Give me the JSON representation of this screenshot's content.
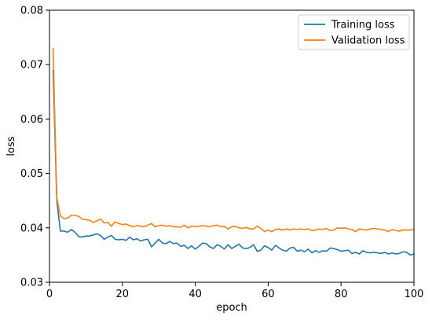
{
  "chart_data": {
    "type": "line",
    "title": "",
    "xlabel": "epoch",
    "ylabel": "loss",
    "xlim": [
      0,
      100
    ],
    "ylim": [
      0.03,
      0.08
    ],
    "xticks": [
      0,
      20,
      40,
      60,
      80,
      100
    ],
    "yticks": [
      0.03,
      0.04,
      0.05,
      0.06,
      0.07,
      0.08
    ],
    "xtick_labels": [
      "0",
      "20",
      "40",
      "60",
      "80",
      "100"
    ],
    "ytick_labels": [
      "0.03",
      "0.04",
      "0.05",
      "0.06",
      "0.07",
      "0.08"
    ],
    "grid": false,
    "legend": {
      "position": "top-right"
    },
    "x": [
      1,
      2,
      3,
      4,
      5,
      6,
      7,
      8,
      9,
      10,
      11,
      12,
      13,
      14,
      15,
      16,
      17,
      18,
      19,
      20,
      21,
      22,
      23,
      24,
      25,
      26,
      27,
      28,
      29,
      30,
      31,
      32,
      33,
      34,
      35,
      36,
      37,
      38,
      39,
      40,
      41,
      42,
      43,
      44,
      45,
      46,
      47,
      48,
      49,
      50,
      51,
      52,
      53,
      54,
      55,
      56,
      57,
      58,
      59,
      60,
      61,
      62,
      63,
      64,
      65,
      66,
      67,
      68,
      69,
      70,
      71,
      72,
      73,
      74,
      75,
      76,
      77,
      78,
      79,
      80,
      81,
      82,
      83,
      84,
      85,
      86,
      87,
      88,
      89,
      90,
      91,
      92,
      93,
      94,
      95,
      96,
      97,
      98,
      99,
      100
    ],
    "series": [
      {
        "name": "Training loss",
        "color": "#1f77b4",
        "values": [
          0.069,
          0.045,
          0.0394,
          0.0394,
          0.0392,
          0.0397,
          0.0392,
          0.0384,
          0.0383,
          0.0385,
          0.0385,
          0.0387,
          0.0389,
          0.0386,
          0.0379,
          0.0383,
          0.0386,
          0.0379,
          0.0378,
          0.0379,
          0.0377,
          0.0383,
          0.0378,
          0.038,
          0.0376,
          0.0378,
          0.0379,
          0.0365,
          0.0372,
          0.0379,
          0.0372,
          0.0371,
          0.0375,
          0.0371,
          0.0372,
          0.0366,
          0.0368,
          0.0362,
          0.0367,
          0.0361,
          0.0366,
          0.0372,
          0.0371,
          0.0365,
          0.0362,
          0.0369,
          0.0366,
          0.0361,
          0.0369,
          0.0362,
          0.0366,
          0.037,
          0.0363,
          0.0362,
          0.0364,
          0.0369,
          0.0357,
          0.0359,
          0.0367,
          0.0364,
          0.0359,
          0.0368,
          0.0363,
          0.0359,
          0.0357,
          0.0363,
          0.0364,
          0.0357,
          0.0359,
          0.0356,
          0.0361,
          0.0354,
          0.0358,
          0.0355,
          0.0358,
          0.0357,
          0.0363,
          0.0362,
          0.036,
          0.0357,
          0.0358,
          0.0359,
          0.0353,
          0.0355,
          0.0352,
          0.0358,
          0.0355,
          0.0354,
          0.0355,
          0.0354,
          0.0353,
          0.0355,
          0.0352,
          0.0354,
          0.0352,
          0.0353,
          0.0356,
          0.0355,
          0.035,
          0.0352
        ]
      },
      {
        "name": "Validation loss",
        "color": "#ff7f0e",
        "values": [
          0.073,
          0.0455,
          0.0422,
          0.0417,
          0.0418,
          0.0423,
          0.0423,
          0.0421,
          0.0416,
          0.0415,
          0.0414,
          0.041,
          0.0413,
          0.0416,
          0.0409,
          0.041,
          0.0403,
          0.0411,
          0.0408,
          0.0406,
          0.0407,
          0.0404,
          0.0402,
          0.0404,
          0.0403,
          0.0402,
          0.0405,
          0.0408,
          0.0402,
          0.0404,
          0.0405,
          0.0403,
          0.0404,
          0.0402,
          0.0402,
          0.0401,
          0.0405,
          0.04,
          0.0403,
          0.0402,
          0.0403,
          0.0404,
          0.0403,
          0.0402,
          0.0404,
          0.0405,
          0.0402,
          0.0403,
          0.0398,
          0.0402,
          0.0403,
          0.04,
          0.0399,
          0.0401,
          0.0398,
          0.0398,
          0.0403,
          0.0399,
          0.0393,
          0.0396,
          0.0393,
          0.0397,
          0.0398,
          0.0396,
          0.0398,
          0.0396,
          0.0398,
          0.0397,
          0.0398,
          0.0397,
          0.0398,
          0.0395,
          0.0396,
          0.0398,
          0.0397,
          0.0399,
          0.0395,
          0.0396,
          0.04,
          0.0399,
          0.04,
          0.0398,
          0.0397,
          0.0393,
          0.0398,
          0.0397,
          0.0396,
          0.0398,
          0.0399,
          0.0398,
          0.0397,
          0.0396,
          0.0393,
          0.0397,
          0.0395,
          0.0394,
          0.0396,
          0.0396,
          0.0396,
          0.0397
        ]
      }
    ]
  }
}
